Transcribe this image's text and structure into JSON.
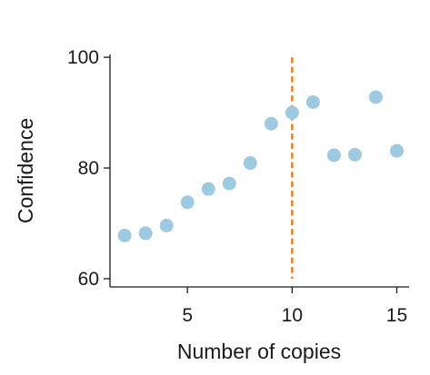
{
  "chart_data": {
    "type": "scatter",
    "title": "",
    "xlabel": "Number of copies",
    "ylabel": "Confidence",
    "xlim": [
      1.3,
      15.5
    ],
    "ylim": [
      59,
      101
    ],
    "xticks": [
      5,
      10,
      15
    ],
    "yticks": [
      60,
      80,
      100
    ],
    "xtick_labels": [
      "5",
      "10",
      "15"
    ],
    "ytick_labels": [
      "60",
      "80",
      "100"
    ],
    "grid": false,
    "colors": {
      "points": "#9ecae1",
      "reference_line": "#e6872a",
      "axis": "#1a1a1a"
    },
    "series": [
      {
        "x": [
          2,
          3,
          4,
          5,
          6,
          7,
          8,
          9,
          10,
          11,
          12,
          13,
          14,
          15
        ],
        "y": [
          67.8,
          68.2,
          69.6,
          73.8,
          76.2,
          77.2,
          80.9,
          88.0,
          90.0,
          91.9,
          82.3,
          82.4,
          92.8,
          83.1
        ]
      }
    ],
    "reference_lines": [
      {
        "orientation": "vertical",
        "x": 10,
        "y_from": 60,
        "y_to": 100,
        "style": "dashed"
      }
    ]
  }
}
